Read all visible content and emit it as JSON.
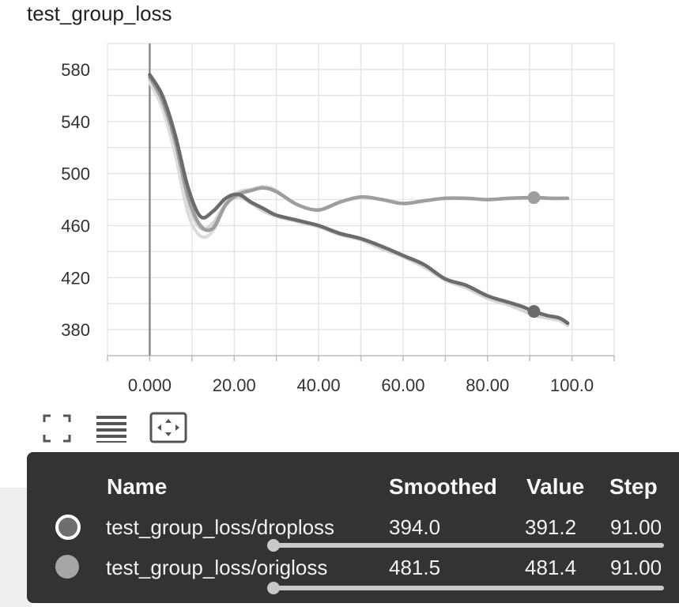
{
  "chart_data": {
    "type": "line",
    "title": "test_group_loss",
    "xlim": [
      -10,
      110
    ],
    "ylim": [
      360,
      600
    ],
    "x_ticks": [
      0,
      20,
      40,
      60,
      80,
      100
    ],
    "x_tick_labels": [
      "0.000",
      "20.00",
      "40.00",
      "60.00",
      "80.00",
      "100.0"
    ],
    "y_ticks": [
      380,
      420,
      460,
      500,
      540,
      580
    ],
    "y_tick_labels": [
      "380",
      "420",
      "460",
      "500",
      "540",
      "580"
    ],
    "grid": true,
    "series": [
      {
        "name": "test_group_loss/droploss",
        "color": "#6b6b6b",
        "raw_color": "#d4d4d4",
        "x": [
          0,
          3,
          6,
          9,
          12,
          15,
          18,
          21,
          24,
          27,
          30,
          35,
          40,
          45,
          50,
          55,
          60,
          65,
          70,
          75,
          80,
          85,
          88,
          91,
          94,
          97,
          99
        ],
        "values": [
          576,
          560,
          530,
          490,
          467,
          471,
          481,
          484,
          478,
          473,
          468,
          464,
          460,
          454,
          450,
          444,
          437,
          430,
          419,
          414,
          406,
          401,
          398,
          394,
          391,
          389,
          385
        ],
        "raw_values": [
          572,
          555,
          522,
          478,
          458,
          462,
          477,
          482,
          477,
          471,
          467,
          463,
          459,
          453,
          449,
          442,
          436,
          428,
          418,
          412,
          404,
          399,
          395,
          391,
          389,
          387,
          383
        ],
        "highlight_x": 91,
        "highlight_y": 394.0
      },
      {
        "name": "test_group_loss/origloss",
        "color": "#9e9e9e",
        "raw_color": "#dcdcdc",
        "x": [
          0,
          3,
          6,
          9,
          12,
          15,
          18,
          21,
          24,
          27,
          30,
          35,
          40,
          45,
          50,
          55,
          60,
          65,
          70,
          75,
          80,
          85,
          91,
          95,
          99
        ],
        "values": [
          574,
          556,
          525,
          483,
          460,
          458,
          476,
          484,
          487,
          489,
          486,
          476,
          472,
          478,
          482,
          480,
          477,
          479,
          481,
          481,
          480,
          481,
          481.5,
          481,
          481
        ],
        "raw_values": [
          570,
          550,
          515,
          470,
          452,
          456,
          478,
          486,
          488,
          490,
          487,
          476,
          472,
          478,
          482,
          480,
          477,
          479,
          481,
          481,
          480,
          481,
          481.4,
          481,
          481
        ],
        "highlight_x": 91,
        "highlight_y": 481.5
      }
    ]
  },
  "toolbar": {
    "expand_icon": "fullscreen-icon",
    "data_icon": "data-table-icon",
    "fit_icon": "fit-domain-icon"
  },
  "tooltip": {
    "headers": {
      "name": "Name",
      "smoothed": "Smoothed",
      "value": "Value",
      "step": "Step"
    },
    "rows": [
      {
        "name": "test_group_loss/droploss",
        "smoothed": "394.0",
        "value": "391.2",
        "step": "91.00",
        "swatch_color": "#6e6e6e"
      },
      {
        "name": "test_group_loss/origloss",
        "smoothed": "481.5",
        "value": "481.4",
        "step": "91.00",
        "swatch_color": "#a6a6a6"
      }
    ]
  }
}
